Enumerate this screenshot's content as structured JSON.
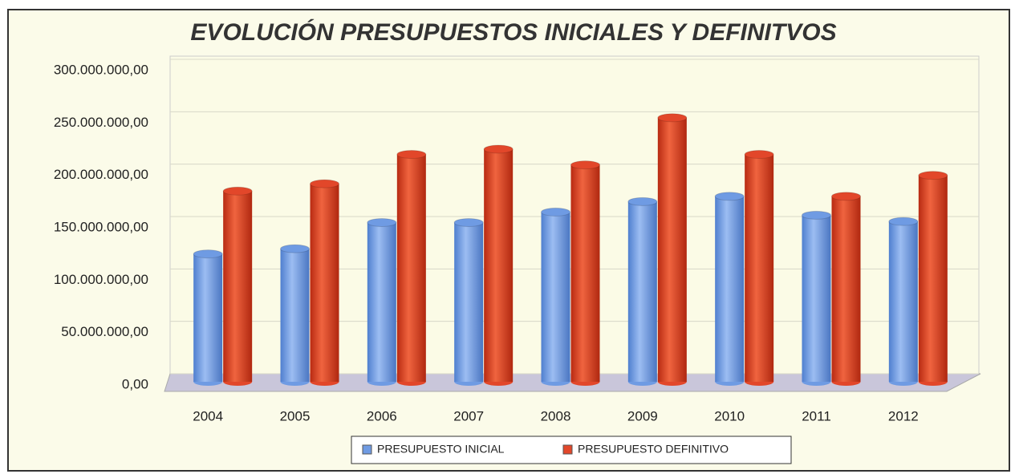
{
  "chart_data": {
    "type": "bar",
    "title": "EVOLUCIÓN PRESUPUESTOS INICIALES Y DEFINITVOS",
    "categories": [
      "2004",
      "2005",
      "2006",
      "2007",
      "2008",
      "2009",
      "2010",
      "2011",
      "2012"
    ],
    "series": [
      {
        "name": "PRESUPUESTO INICIAL",
        "color": "#6f9be3",
        "values": [
          125000000,
          130000000,
          155000000,
          155000000,
          165000000,
          175000000,
          180000000,
          162000000,
          156000000
        ]
      },
      {
        "name": "PRESUPUESTO DEFINITIVO",
        "color": "#e2472a",
        "values": [
          185000000,
          192000000,
          220000000,
          225000000,
          210000000,
          255000000,
          220000000,
          180000000,
          200000000
        ]
      }
    ],
    "ylim": [
      0,
      300000000
    ],
    "yticks": [
      {
        "value": 0,
        "label": "0,00"
      },
      {
        "value": 50000000,
        "label": "50.000.000,00"
      },
      {
        "value": 100000000,
        "label": "100.000.000,00"
      },
      {
        "value": 150000000,
        "label": "150.000.000,00"
      },
      {
        "value": 200000000,
        "label": "200.000.000,00"
      },
      {
        "value": 250000000,
        "label": "250.000.000,00"
      },
      {
        "value": 300000000,
        "label": "300.000.000,00"
      }
    ],
    "grid": true,
    "legend": "bottom"
  }
}
